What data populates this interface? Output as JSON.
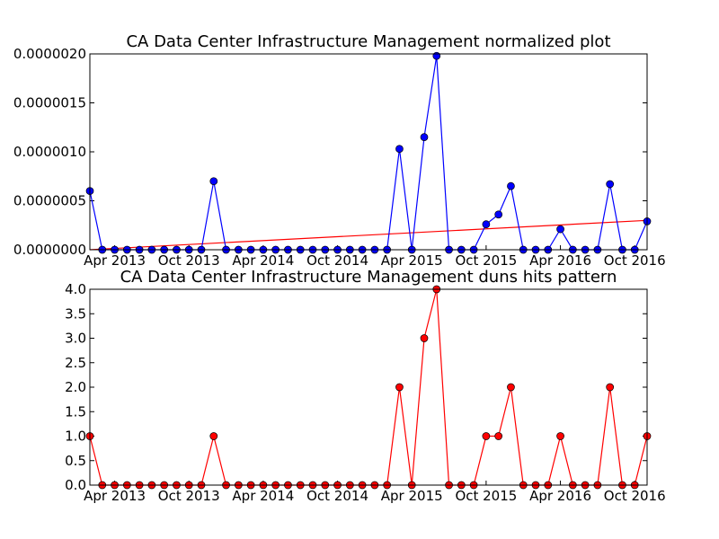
{
  "chart_data": [
    {
      "type": "line",
      "title": "CA Data Center Infrastructure Management normalized plot",
      "categories": [
        null,
        null,
        "Apr 2013",
        null,
        null,
        null,
        null,
        null,
        "Oct 2013",
        null,
        null,
        null,
        null,
        null,
        "Apr 2014",
        null,
        null,
        null,
        null,
        null,
        "Oct 2014",
        null,
        null,
        null,
        null,
        null,
        "Apr 2015",
        null,
        null,
        null,
        null,
        null,
        "Oct 2015",
        null,
        null,
        null,
        null,
        null,
        "Apr 2016",
        null,
        null,
        null,
        null,
        null,
        "Oct 2016",
        null
      ],
      "series": [
        {
          "color": "#0000ff",
          "values": [
            6e-07,
            0,
            0,
            0,
            0,
            0,
            0,
            0,
            0,
            0,
            7e-07,
            0,
            0,
            0,
            0,
            0,
            0,
            0,
            0,
            0,
            0,
            0,
            0,
            0,
            0,
            1.03e-06,
            0,
            1.15e-06,
            1.98e-06,
            0,
            0,
            0,
            2.6e-07,
            3.6e-07,
            6.5e-07,
            0,
            0,
            0,
            2.1e-07,
            0,
            0,
            0,
            6.7e-07,
            0,
            0,
            2.9e-07
          ]
        }
      ],
      "trend_line": {
        "color": "#ff0000",
        "start": 0,
        "end": 3e-07
      },
      "ylim": [
        0,
        2e-06
      ],
      "yticks": [
        {
          "value": 0,
          "label": "0.0000000"
        },
        {
          "value": 5e-07,
          "label": "0.0000005"
        },
        {
          "value": 1e-06,
          "label": "0.0000010"
        },
        {
          "value": 1.5e-06,
          "label": "0.0000015"
        },
        {
          "value": 2e-06,
          "label": "0.0000020"
        }
      ]
    },
    {
      "type": "line",
      "title": "CA Data Center Infrastructure Management duns hits pattern",
      "categories": [
        null,
        null,
        "Apr 2013",
        null,
        null,
        null,
        null,
        null,
        "Oct 2013",
        null,
        null,
        null,
        null,
        null,
        "Apr 2014",
        null,
        null,
        null,
        null,
        null,
        "Oct 2014",
        null,
        null,
        null,
        null,
        null,
        "Apr 2015",
        null,
        null,
        null,
        null,
        null,
        "Oct 2015",
        null,
        null,
        null,
        null,
        null,
        "Apr 2016",
        null,
        null,
        null,
        null,
        null,
        "Oct 2016",
        null
      ],
      "series": [
        {
          "color": "#ff0000",
          "values": [
            1,
            0,
            0,
            0,
            0,
            0,
            0,
            0,
            0,
            0,
            1,
            0,
            0,
            0,
            0,
            0,
            0,
            0,
            0,
            0,
            0,
            0,
            0,
            0,
            0,
            2,
            0,
            3,
            4,
            0,
            0,
            0,
            1,
            1,
            2,
            0,
            0,
            0,
            1,
            0,
            0,
            0,
            2,
            0,
            0,
            1
          ]
        }
      ],
      "ylim": [
        0,
        4
      ],
      "yticks": [
        {
          "value": 0,
          "label": "0.0"
        },
        {
          "value": 0.5,
          "label": "0.5"
        },
        {
          "value": 1,
          "label": "1.0"
        },
        {
          "value": 1.5,
          "label": "1.5"
        },
        {
          "value": 2,
          "label": "2.0"
        },
        {
          "value": 2.5,
          "label": "2.5"
        },
        {
          "value": 3,
          "label": "3.0"
        },
        {
          "value": 3.5,
          "label": "3.5"
        },
        {
          "value": 4,
          "label": "4.0"
        }
      ]
    }
  ]
}
